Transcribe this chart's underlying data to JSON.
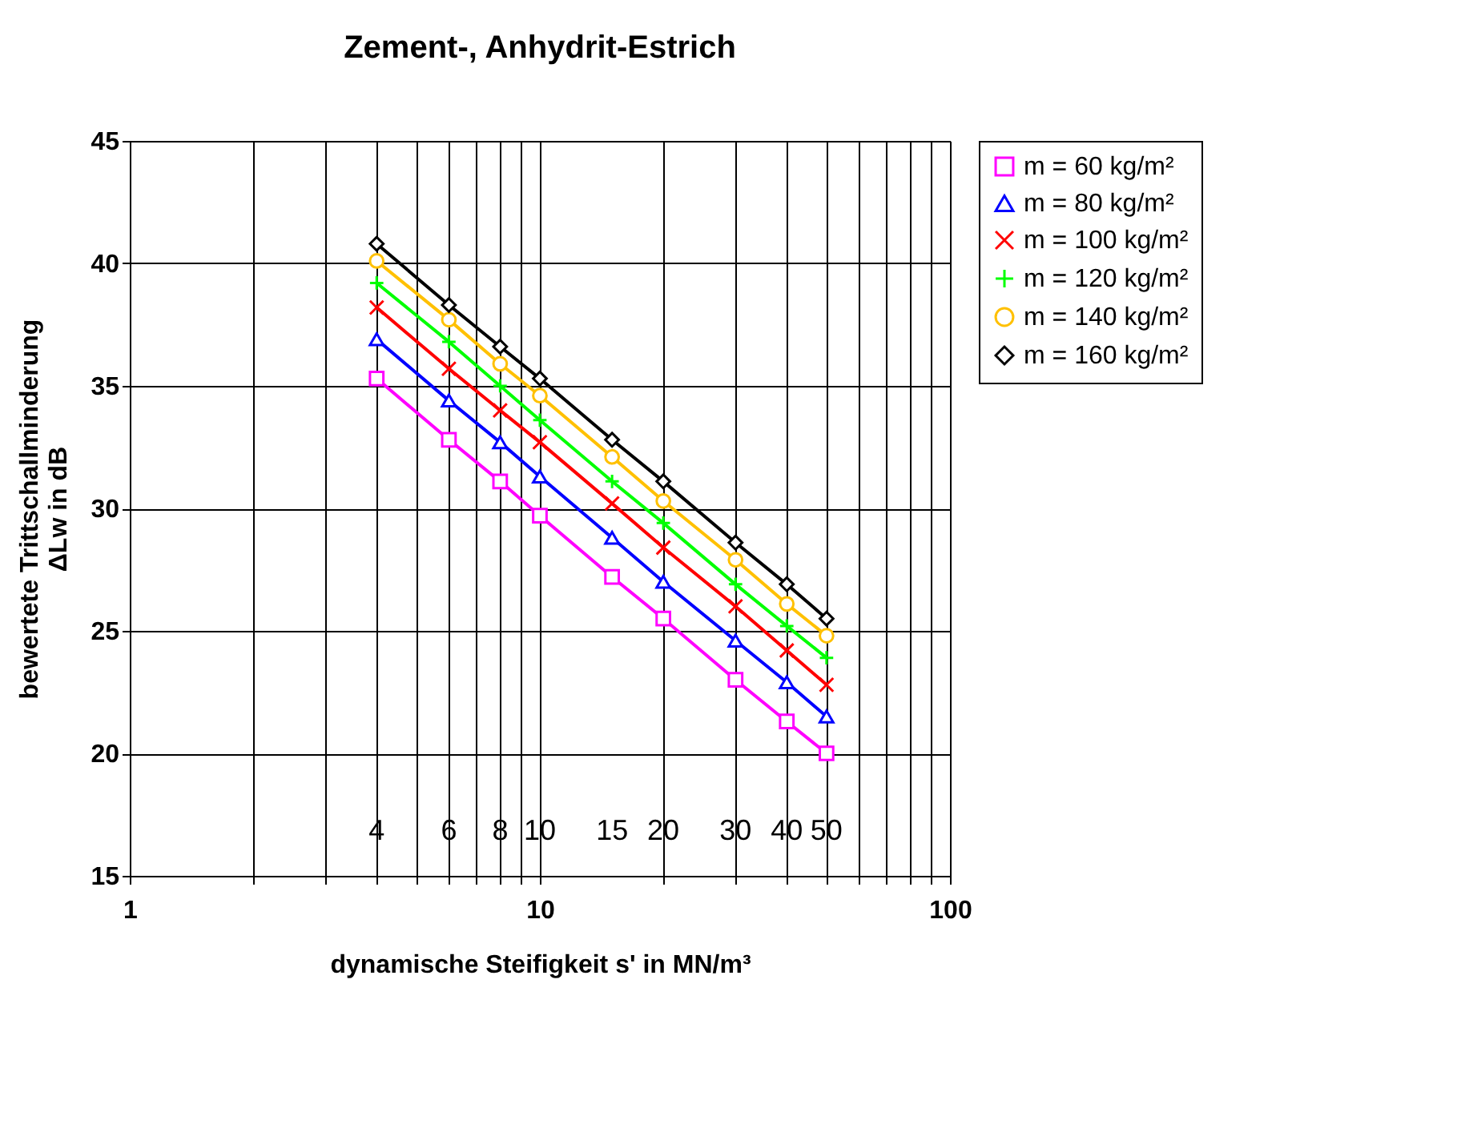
{
  "chart_data": {
    "type": "line",
    "title": "Zement-, Anhydrit-Estrich",
    "xlabel": "dynamische Steifigkeit s' in MN/m³",
    "ylabel": "bewertete Trittschallminderung\nΔLw in dB",
    "log": "x",
    "grid": true,
    "legend": "right",
    "line_style": "solid",
    "xlim": [
      1,
      100
    ],
    "ylim": [
      15,
      45
    ],
    "xticks": [
      1,
      {
        "value": 2,
        "label": null
      },
      {
        "value": 3,
        "label": null
      },
      {
        "value": 4,
        "label": null
      },
      {
        "value": 5,
        "label": null
      },
      {
        "value": 6,
        "label": null
      },
      {
        "value": 7,
        "label": null
      },
      {
        "value": 8,
        "label": null
      },
      {
        "value": 9,
        "label": null
      },
      10,
      {
        "value": 20,
        "label": null
      },
      {
        "value": 30,
        "label": null
      },
      {
        "value": 40,
        "label": null
      },
      {
        "value": 50,
        "label": null
      },
      {
        "value": 60,
        "label": null
      },
      {
        "value": 70,
        "label": null
      },
      {
        "value": 80,
        "label": null
      },
      {
        "value": 90,
        "label": null
      },
      100
    ],
    "yticks": [
      15,
      20,
      25,
      30,
      35,
      40,
      45
    ],
    "x": [
      4,
      6,
      8,
      10,
      15,
      20,
      30,
      40,
      50
    ],
    "series": [
      {
        "name": "m = 60 kg/m²",
        "color": "#ff00ff",
        "marker": "square",
        "values": [
          35.3,
          32.8,
          31.1,
          29.7,
          27.2,
          25.5,
          23.0,
          21.3,
          20.0
        ]
      },
      {
        "name": "m = 80 kg/m²",
        "color": "#0000ff",
        "marker": "triangle",
        "values": [
          36.9,
          34.4,
          32.7,
          31.3,
          28.8,
          27.0,
          24.6,
          22.9,
          21.5
        ]
      },
      {
        "name": "m = 100 kg/m²",
        "color": "#ff0000",
        "marker": "cross",
        "values": [
          38.2,
          35.7,
          34.0,
          32.7,
          30.2,
          28.4,
          26.0,
          24.2,
          22.8
        ]
      },
      {
        "name": "m = 120 kg/m²",
        "color": "#00ff00",
        "marker": "plus",
        "values": [
          39.2,
          36.8,
          35.0,
          33.6,
          31.1,
          29.4,
          26.9,
          25.2,
          23.9
        ]
      },
      {
        "name": "m = 140 kg/m²",
        "color": "#ffc000",
        "marker": "circle",
        "values": [
          40.1,
          37.7,
          35.9,
          34.6,
          32.1,
          30.3,
          27.9,
          26.1,
          24.8
        ]
      },
      {
        "name": "m = 160 kg/m²",
        "color": "#000000",
        "marker": "diamond",
        "values": [
          40.8,
          38.3,
          36.6,
          35.3,
          32.8,
          31.1,
          28.6,
          26.9,
          25.5
        ]
      }
    ],
    "annotations": [
      "4",
      "6",
      "8",
      "10",
      "15",
      "20",
      "30",
      "40",
      "50"
    ]
  }
}
